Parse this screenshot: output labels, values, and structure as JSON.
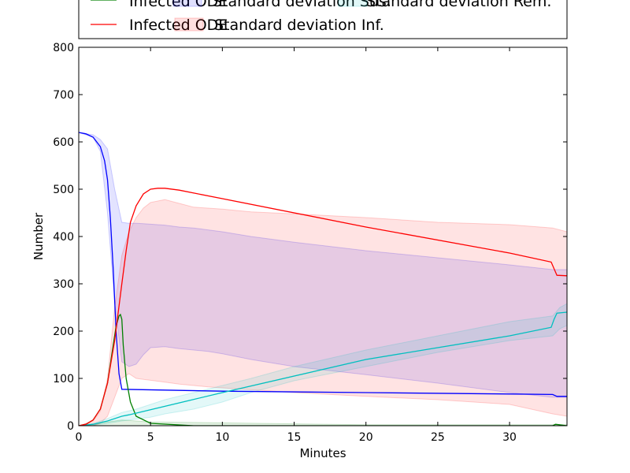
{
  "chart_data": {
    "type": "line",
    "xlabel": "Minutes",
    "ylabel": "Number",
    "xlim": [
      0,
      34
    ],
    "ylim": [
      0,
      800
    ],
    "xticks": [
      0,
      5,
      10,
      15,
      20,
      25,
      30
    ],
    "yticks": [
      0,
      100,
      200,
      300,
      400,
      500,
      600,
      700,
      800
    ],
    "grid": false,
    "legend": {
      "placement": "top",
      "entries": [
        {
          "label": "Infected ODE",
          "kind": "line",
          "color": "#008000"
        },
        {
          "label": "Standard deviation Sus.",
          "kind": "band",
          "color": "#0000ff"
        },
        {
          "label": "Standard deviation Rem.",
          "kind": "band",
          "color": "#00bfbf"
        },
        {
          "label": "Infected ODE",
          "kind": "line",
          "color": "#ff0000"
        },
        {
          "label": "Standard deviation Inf.",
          "kind": "band",
          "color": "#ff0000"
        }
      ]
    },
    "series": [
      {
        "color": "#0000ff",
        "x": [
          0,
          0.5,
          1,
          1.5,
          1.8,
          2,
          2.2,
          2.4,
          2.6,
          2.8,
          3,
          10,
          20,
          30,
          33,
          33.3,
          34
        ],
        "y": [
          620,
          617,
          610,
          590,
          560,
          520,
          440,
          330,
          200,
          110,
          77,
          73,
          70,
          67,
          66,
          62,
          62
        ]
      },
      {
        "color": "#008000",
        "x": [
          0,
          0.5,
          1,
          1.5,
          2,
          2.3,
          2.6,
          2.8,
          2.9,
          3.0,
          3.1,
          3.3,
          3.6,
          4,
          5,
          8,
          33,
          33.2,
          34
        ],
        "y": [
          0,
          3,
          12,
          35,
          90,
          150,
          210,
          232,
          235,
          225,
          170,
          100,
          50,
          20,
          5,
          0,
          0,
          3,
          0
        ]
      },
      {
        "color": "#00bfbf",
        "x": [
          0,
          1,
          2,
          3,
          3.5,
          10,
          20,
          30,
          32.9,
          33.1,
          33.3,
          34
        ],
        "y": [
          0,
          3,
          10,
          20,
          23,
          70,
          140,
          190,
          208,
          225,
          238,
          240
        ]
      },
      {
        "color": "#ff0000",
        "x": [
          0,
          0.5,
          1,
          1.5,
          2,
          2.5,
          3,
          3.3,
          3.6,
          4,
          4.5,
          5,
          5.5,
          6,
          7,
          10,
          20,
          30,
          32.9,
          33.3,
          34
        ],
        "y": [
          0,
          3,
          12,
          35,
          90,
          180,
          300,
          370,
          430,
          465,
          490,
          500,
          502,
          502,
          498,
          480,
          420,
          365,
          346,
          318,
          317
        ]
      }
    ],
    "bands": [
      {
        "color": "#0000ff",
        "x": [
          0,
          1,
          1.5,
          2,
          2.5,
          3,
          3.5,
          4,
          4.5,
          5,
          6,
          7,
          8,
          9,
          10,
          12,
          15,
          20,
          25,
          30,
          33,
          34
        ],
        "upper": [
          620,
          615,
          605,
          585,
          500,
          430,
          428,
          428,
          427,
          426,
          424,
          420,
          418,
          414,
          410,
          400,
          388,
          370,
          355,
          340,
          330,
          330
        ],
        "lower": [
          620,
          610,
          580,
          450,
          260,
          135,
          125,
          130,
          150,
          165,
          167,
          163,
          160,
          157,
          152,
          140,
          125,
          108,
          90,
          70,
          60,
          60
        ]
      },
      {
        "color": "#ff0000",
        "x": [
          0,
          1,
          1.5,
          2,
          2.5,
          3,
          3.5,
          4,
          4.5,
          5,
          6,
          7,
          8,
          9,
          10,
          12,
          15,
          20,
          25,
          30,
          33,
          34
        ],
        "upper": [
          0,
          10,
          30,
          100,
          250,
          360,
          410,
          440,
          460,
          472,
          478,
          470,
          462,
          460,
          458,
          452,
          448,
          440,
          430,
          425,
          418,
          410
        ],
        "lower": [
          0,
          0,
          5,
          20,
          60,
          100,
          110,
          100,
          98,
          96,
          92,
          88,
          85,
          82,
          80,
          76,
          70,
          62,
          55,
          45,
          25,
          20
        ]
      },
      {
        "color": "#00bfbf",
        "x": [
          0,
          1,
          2,
          3,
          4,
          5,
          6,
          8,
          10,
          12,
          15,
          20,
          25,
          30,
          33,
          33.5,
          34
        ],
        "upper": [
          0,
          5,
          15,
          28,
          35,
          45,
          55,
          70,
          85,
          100,
          125,
          160,
          190,
          220,
          232,
          250,
          258
        ],
        "lower": [
          0,
          1,
          5,
          10,
          14,
          18,
          25,
          35,
          50,
          70,
          95,
          125,
          155,
          180,
          190,
          205,
          212
        ]
      },
      {
        "color": "#008000",
        "x": [
          0,
          1,
          2,
          3,
          4,
          5,
          10,
          15,
          20,
          25,
          30,
          34
        ],
        "upper": [
          0,
          3,
          8,
          12,
          10,
          8,
          6,
          4,
          2,
          2,
          2,
          2
        ],
        "lower": [
          0,
          0,
          0,
          0,
          0,
          0,
          0,
          0,
          0,
          0,
          0,
          0
        ]
      }
    ]
  }
}
